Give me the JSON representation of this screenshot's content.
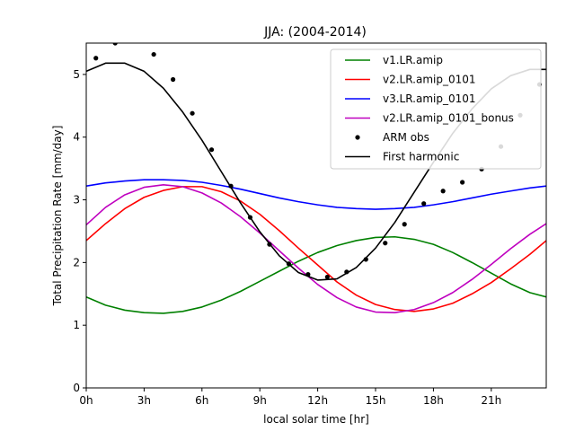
{
  "chart_data": {
    "type": "line",
    "title": "JJA: (2004-2014)",
    "xlabel": "local solar time [hr]",
    "ylabel": "Total Precipitation Rate [mm/day]",
    "xlim": [
      0,
      23.85
    ],
    "ylim": [
      0,
      5.5
    ],
    "xticks": [
      0,
      3,
      6,
      9,
      12,
      15,
      18,
      21
    ],
    "xtick_labels": [
      "0h",
      "3h",
      "6h",
      "9h",
      "12h",
      "15h",
      "18h",
      "21h"
    ],
    "yticks": [
      0,
      1,
      2,
      3,
      4,
      5
    ],
    "ytick_labels": [
      "0",
      "1",
      "2",
      "3",
      "4",
      "5"
    ],
    "grid": false,
    "legend_position": "top-right",
    "series": [
      {
        "name": "v1.LR.amip",
        "color": "#008000",
        "style": "line",
        "x": [
          0,
          1,
          2,
          3,
          4,
          5,
          6,
          7,
          8,
          9,
          10,
          11,
          12,
          13,
          14,
          15,
          16,
          17,
          18,
          19,
          20,
          21,
          22,
          23,
          23.85
        ],
        "y": [
          1.45,
          1.32,
          1.24,
          1.2,
          1.19,
          1.22,
          1.29,
          1.4,
          1.54,
          1.7,
          1.86,
          2.02,
          2.16,
          2.27,
          2.35,
          2.4,
          2.41,
          2.37,
          2.29,
          2.16,
          2.0,
          1.83,
          1.66,
          1.52,
          1.45
        ]
      },
      {
        "name": "v2.LR.amip_0101",
        "color": "#ff0000",
        "style": "line",
        "x": [
          0,
          1,
          2,
          3,
          4,
          5,
          6,
          7,
          8,
          9,
          10,
          11,
          12,
          13,
          14,
          15,
          16,
          17,
          18,
          19,
          20,
          21,
          22,
          23,
          23.85
        ],
        "y": [
          2.35,
          2.62,
          2.86,
          3.04,
          3.15,
          3.21,
          3.21,
          3.13,
          2.98,
          2.77,
          2.51,
          2.23,
          1.96,
          1.69,
          1.48,
          1.33,
          1.25,
          1.22,
          1.26,
          1.35,
          1.5,
          1.68,
          1.9,
          2.13,
          2.35
        ]
      },
      {
        "name": "v3.LR.amip_0101",
        "color": "#0000ff",
        "style": "line",
        "x": [
          0,
          1,
          2,
          3,
          4,
          5,
          6,
          7,
          8,
          9,
          10,
          11,
          12,
          13,
          14,
          15,
          16,
          17,
          18,
          19,
          20,
          21,
          22,
          23,
          23.85
        ],
        "y": [
          3.22,
          3.27,
          3.3,
          3.32,
          3.32,
          3.31,
          3.28,
          3.23,
          3.17,
          3.1,
          3.03,
          2.97,
          2.92,
          2.88,
          2.86,
          2.85,
          2.86,
          2.88,
          2.92,
          2.97,
          3.03,
          3.09,
          3.14,
          3.19,
          3.22
        ]
      },
      {
        "name": "v2.LR.amip_0101_bonus",
        "color": "#bf00bf",
        "style": "line",
        "x": [
          0,
          1,
          2,
          3,
          4,
          5,
          6,
          7,
          8,
          9,
          10,
          11,
          12,
          13,
          14,
          15,
          16,
          17,
          18,
          19,
          20,
          21,
          22,
          23,
          23.85
        ],
        "y": [
          2.6,
          2.88,
          3.08,
          3.2,
          3.24,
          3.21,
          3.11,
          2.95,
          2.73,
          2.47,
          2.19,
          1.91,
          1.65,
          1.44,
          1.29,
          1.21,
          1.2,
          1.25,
          1.36,
          1.52,
          1.73,
          1.97,
          2.22,
          2.45,
          2.62
        ]
      },
      {
        "name": "ARM obs",
        "color": "#000000",
        "style": "points",
        "x": [
          0.5,
          1.5,
          3.5,
          4.5,
          5.5,
          6.5,
          7.5,
          8.5,
          9.5,
          10.5,
          11.5,
          12.5,
          13.5,
          14.5,
          15.5,
          16.5,
          17.5,
          18.5,
          19.5,
          20.5,
          21.5,
          22.5,
          23.5
        ],
        "y": [
          5.26,
          5.5,
          5.32,
          4.92,
          4.38,
          3.8,
          3.22,
          2.72,
          2.29,
          1.98,
          1.81,
          1.77,
          1.85,
          2.05,
          2.31,
          2.61,
          2.94,
          3.14,
          3.28,
          3.49,
          3.85,
          4.35,
          4.84
        ]
      },
      {
        "name": "First harmonic",
        "color": "#000000",
        "style": "line",
        "x": [
          0,
          1,
          2,
          3,
          4,
          5,
          6,
          7,
          8,
          9,
          10,
          11,
          12,
          13,
          14,
          15,
          16,
          17,
          18,
          19,
          20,
          21,
          22,
          23,
          23.85
        ],
        "y": [
          5.05,
          5.18,
          5.18,
          5.05,
          4.78,
          4.4,
          3.95,
          3.45,
          2.95,
          2.49,
          2.11,
          1.84,
          1.72,
          1.74,
          1.92,
          2.23,
          2.64,
          3.12,
          3.6,
          4.06,
          4.45,
          4.77,
          4.98,
          5.08,
          5.08
        ]
      }
    ]
  }
}
